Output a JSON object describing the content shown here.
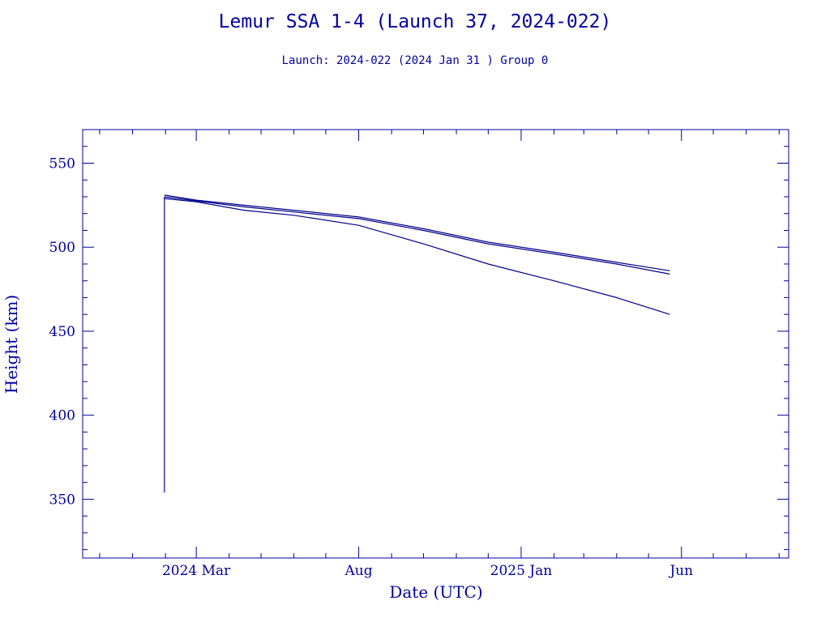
{
  "title": "Lemur SSA 1-4 (Launch 37, 2024-022)",
  "subtitle": "Launch: 2024-022  (2024 Jan 31 )  Group 0",
  "colors": {
    "axis": "#0000a0",
    "series": "#00008b",
    "background": "#ffffff"
  },
  "chart_data": {
    "type": "line",
    "title": "Lemur SSA 1-4 (Launch 37, 2024-022)",
    "subtitle": "Launch: 2024-022  (2024 Jan 31 )  Group 0",
    "xlabel": "Date (UTC)",
    "ylabel": "Height (km)",
    "xlim": [
      "2023-11-15",
      "2025-09-10"
    ],
    "ylim": [
      315,
      570
    ],
    "x_ticks": [
      {
        "date": "2024-03-01",
        "label": "2024 Mar"
      },
      {
        "date": "2024-08-01",
        "label": "Aug"
      },
      {
        "date": "2025-01-01",
        "label": "2025 Jan"
      },
      {
        "date": "2025-06-01",
        "label": "Jun"
      }
    ],
    "y_ticks": [
      350,
      400,
      450,
      500,
      550
    ],
    "grid": false,
    "launch_spike": {
      "date": "2024-01-31",
      "heights": [
        354,
        530
      ]
    },
    "series": [
      {
        "points": [
          [
            "2024-01-31",
            531
          ],
          [
            "2024-03-01",
            528
          ],
          [
            "2024-04-15",
            525
          ],
          [
            "2024-06-01",
            522
          ],
          [
            "2024-08-01",
            518
          ],
          [
            "2024-10-01",
            511
          ],
          [
            "2024-12-01",
            503
          ],
          [
            "2025-02-01",
            497
          ],
          [
            "2025-04-01",
            491
          ],
          [
            "2025-05-21",
            486
          ]
        ]
      },
      {
        "points": [
          [
            "2024-01-31",
            530
          ],
          [
            "2024-03-01",
            527.5
          ],
          [
            "2024-04-15",
            524
          ],
          [
            "2024-06-01",
            521
          ],
          [
            "2024-08-01",
            517
          ],
          [
            "2024-10-01",
            510
          ],
          [
            "2024-12-01",
            502
          ],
          [
            "2025-02-01",
            496
          ],
          [
            "2025-04-01",
            490
          ],
          [
            "2025-05-21",
            484
          ]
        ]
      },
      {
        "points": [
          [
            "2024-01-31",
            529
          ],
          [
            "2024-03-01",
            527
          ],
          [
            "2024-04-15",
            522
          ],
          [
            "2024-06-01",
            519
          ],
          [
            "2024-08-01",
            513
          ],
          [
            "2024-10-01",
            502
          ],
          [
            "2024-12-01",
            490
          ],
          [
            "2025-02-01",
            480
          ],
          [
            "2025-04-01",
            470
          ],
          [
            "2025-05-21",
            460
          ]
        ]
      }
    ]
  }
}
